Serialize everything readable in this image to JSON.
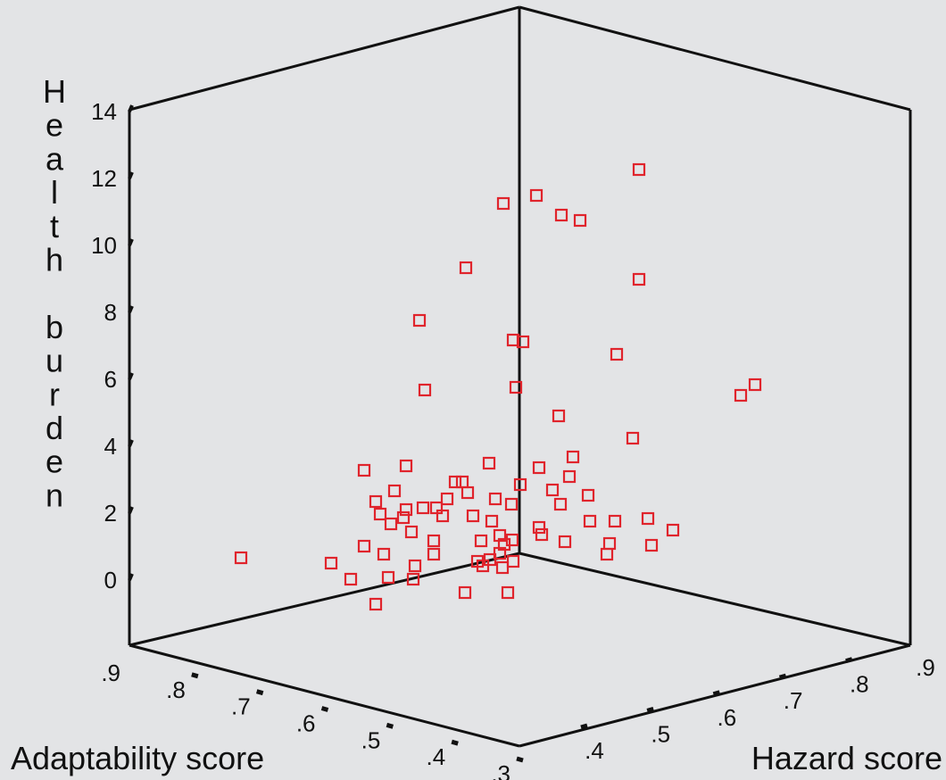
{
  "chart_data": {
    "type": "scatter",
    "title": "",
    "xlabel": "Adaptability score",
    "ylabel": "Health burden",
    "zlabel": "Hazard score",
    "y_ticks": [
      "0",
      "2",
      "4",
      "6",
      "8",
      "10",
      "12",
      "14"
    ],
    "x_ticks": [
      ".9",
      ".8",
      ".7",
      ".6",
      ".5",
      ".4",
      ".3"
    ],
    "z_ticks": [
      ".4",
      ".5",
      ".6",
      ".7",
      ".8",
      ".9"
    ],
    "marker_color": "#e0242c",
    "background": "#e3e4e6",
    "points_note": "projected positions of the plotted points; values only approximate",
    "points": [
      [
        270,
        625
      ],
      [
        371,
        631
      ],
      [
        393,
        649
      ],
      [
        421,
        677
      ],
      [
        408,
        612
      ],
      [
        435,
        647
      ],
      [
        463,
        649
      ],
      [
        465,
        634
      ],
      [
        486,
        621
      ],
      [
        486,
        606
      ],
      [
        430,
        621
      ],
      [
        461,
        596
      ],
      [
        438,
        587
      ],
      [
        452,
        580
      ],
      [
        426,
        576
      ],
      [
        421,
        562
      ],
      [
        442,
        550
      ],
      [
        455,
        571
      ],
      [
        474,
        569
      ],
      [
        489,
        569
      ],
      [
        501,
        559
      ],
      [
        496,
        578
      ],
      [
        408,
        527
      ],
      [
        455,
        522
      ],
      [
        510,
        540
      ],
      [
        518,
        540
      ],
      [
        524,
        552
      ],
      [
        530,
        578
      ],
      [
        548,
        519
      ],
      [
        555,
        559
      ],
      [
        551,
        584
      ],
      [
        560,
        600
      ],
      [
        539,
        606
      ],
      [
        565,
        610
      ],
      [
        574,
        605
      ],
      [
        575,
        629
      ],
      [
        560,
        620
      ],
      [
        549,
        627
      ],
      [
        541,
        634
      ],
      [
        535,
        629
      ],
      [
        563,
        636
      ],
      [
        521,
        664
      ],
      [
        569,
        664
      ],
      [
        573,
        565
      ],
      [
        583,
        543
      ],
      [
        604,
        524
      ],
      [
        619,
        549
      ],
      [
        628,
        565
      ],
      [
        638,
        534
      ],
      [
        642,
        512
      ],
      [
        659,
        555
      ],
      [
        661,
        584
      ],
      [
        604,
        591
      ],
      [
        607,
        599
      ],
      [
        633,
        607
      ],
      [
        680,
        621
      ],
      [
        683,
        609
      ],
      [
        689,
        584
      ],
      [
        726,
        581
      ],
      [
        730,
        611
      ],
      [
        754,
        594
      ],
      [
        709,
        491
      ],
      [
        626,
        466
      ],
      [
        578,
        434
      ],
      [
        476,
        437
      ],
      [
        470,
        359
      ],
      [
        575,
        381
      ],
      [
        586,
        383
      ],
      [
        691,
        397
      ],
      [
        716,
        313
      ],
      [
        522,
        300
      ],
      [
        564,
        228
      ],
      [
        601,
        219
      ],
      [
        629,
        241
      ],
      [
        650,
        247
      ],
      [
        716,
        190
      ],
      [
        830,
        443
      ],
      [
        846,
        431
      ]
    ]
  }
}
